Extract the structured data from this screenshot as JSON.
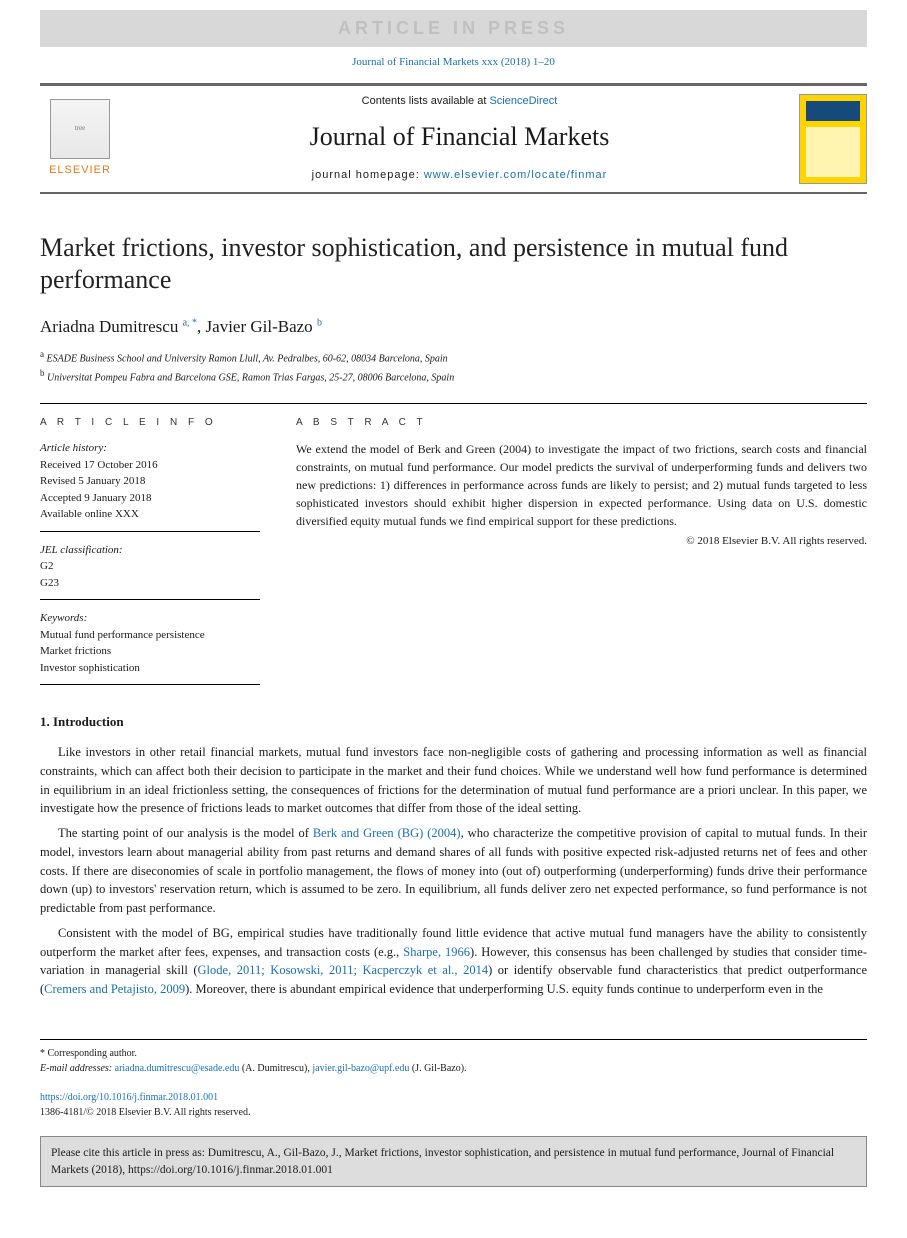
{
  "banner": "ARTICLE IN PRESS",
  "topCitation": "Journal of Financial Markets xxx (2018) 1–20",
  "header": {
    "contentsPrefix": "Contents lists available at ",
    "contentsLink": "ScienceDirect",
    "journalName": "Journal of Financial Markets",
    "homepagePrefix": "journal homepage: ",
    "homepageUrl": "www.elsevier.com/locate/finmar",
    "publisher": "ELSEVIER"
  },
  "article": {
    "title": "Market frictions, investor sophistication, and persistence in mutual fund performance",
    "authors": [
      {
        "name": "Ariadna Dumitrescu",
        "sup": "a, *"
      },
      {
        "name": "Javier Gil-Bazo",
        "sup": "b"
      }
    ],
    "affiliations": [
      {
        "sup": "a",
        "text": "ESADE Business School and University Ramon Llull, Av. Pedralbes, 60-62, 08034 Barcelona, Spain"
      },
      {
        "sup": "b",
        "text": "Universitat Pompeu Fabra and Barcelona GSE, Ramon Trias Fargas, 25-27, 08006 Barcelona, Spain"
      }
    ]
  },
  "info": {
    "heading": "A R T I C L E   I N F O",
    "historyLabel": "Article history:",
    "history": [
      "Received 17 October 2016",
      "Revised 5 January 2018",
      "Accepted 9 January 2018",
      "Available online XXX"
    ],
    "jelLabel": "JEL classification:",
    "jelCodes": [
      "G2",
      "G23"
    ],
    "kwLabel": "Keywords:",
    "keywords": [
      "Mutual fund performance persistence",
      "Market frictions",
      "Investor sophistication"
    ]
  },
  "abstract": {
    "heading": "A B S T R A C T",
    "text": "We extend the model of Berk and Green (2004) to investigate the impact of two frictions, search costs and financial constraints, on mutual fund performance. Our model predicts the survival of underperforming funds and delivers two new predictions: 1) differences in performance across funds are likely to persist; and 2) mutual funds targeted to less sophisticated investors should exhibit higher dispersion in expected performance. Using data on U.S. domestic diversified equity mutual funds we find empirical support for these predictions.",
    "copyright": "© 2018 Elsevier B.V. All rights reserved."
  },
  "body": {
    "sec1": "1. Introduction",
    "para1": "Like investors in other retail financial markets, mutual fund investors face non-negligible costs of gathering and processing information as well as financial constraints, which can affect both their decision to participate in the market and their fund choices. While we understand well how fund performance is determined in equilibrium in an ideal frictionless setting, the consequences of frictions for the determination of mutual fund performance are a priori unclear. In this paper, we investigate how the presence of frictions leads to market outcomes that differ from those of the ideal setting.",
    "para2_a": "The starting point of our analysis is the model of ",
    "para2_link": "Berk and Green (BG) (2004)",
    "para2_b": ", who characterize the competitive provision of capital to mutual funds. In their model, investors learn about managerial ability from past returns and demand shares of all funds with positive expected risk-adjusted returns net of fees and other costs. If there are diseconomies of scale in portfolio management, the flows of money into (out of) outperforming (underperforming) funds drive their performance down (up) to investors' reservation return, which is assumed to be zero. In equilibrium, all funds deliver zero net expected performance, so fund performance is not predictable from past performance.",
    "para3_a": "Consistent with the model of BG, empirical studies have traditionally found little evidence that active mutual fund managers have the ability to consistently outperform the market after fees, expenses, and transaction costs (e.g., ",
    "para3_link1": "Sharpe, 1966",
    "para3_b": "). However, this consensus has been challenged by studies that consider time-variation in managerial skill (",
    "para3_link2": "Glode, 2011; Kosowski, 2011; Kacperczyk et al., 2014",
    "para3_c": ") or identify observable fund characteristics that predict outperformance (",
    "para3_link3": "Cremers and Petajisto, 2009",
    "para3_d": "). Moreover, there is abundant empirical evidence that underperforming U.S. equity funds continue to underperform even in the"
  },
  "footnotes": {
    "corr": "* Corresponding author.",
    "emailsLabel": "E-mail addresses: ",
    "email1": "ariadna.dumitrescu@esade.edu",
    "email1_who": " (A. Dumitrescu), ",
    "email2": "javier.gil-bazo@upf.edu",
    "email2_who": " (J. Gil-Bazo)."
  },
  "doi": {
    "url": "https://doi.org/10.1016/j.finmar.2018.01.001",
    "issn": "1386-4181/© 2018 Elsevier B.V. All rights reserved."
  },
  "citeBox": "Please cite this article in press as: Dumitrescu, A., Gil-Bazo, J., Market frictions, investor sophistication, and persistence in mutual fund performance, Journal of Financial Markets (2018), https://doi.org/10.1016/j.finmar.2018.01.001",
  "colors": {
    "link": "#1a6fb0",
    "bannerBg": "#d8d8d8",
    "bannerText": "#c0c0c0",
    "rule": "#666666",
    "citeBoxBg": "#dddddd",
    "elsevierOrange": "#e67817",
    "coverYellow": "#ffd400"
  },
  "typography": {
    "bodyFont": "Georgia, Times New Roman, serif",
    "sansFont": "Arial, sans-serif",
    "titleSize": 26,
    "journalSize": 26,
    "authorSize": 17,
    "bodySize": 12.5,
    "abstractSize": 12,
    "metaSize": 11,
    "footnoteSize": 10
  },
  "layout": {
    "pageWidth": 907,
    "pageHeight": 1238,
    "sideMargin": 40
  }
}
